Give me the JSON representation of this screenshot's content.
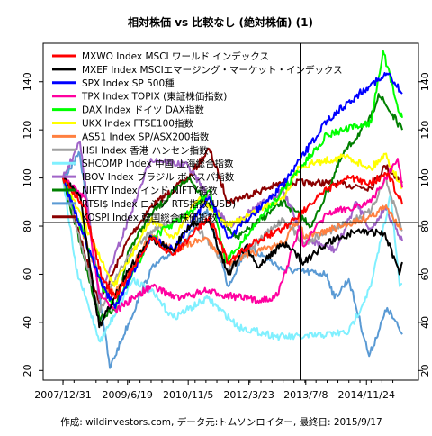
{
  "chart_data": {
    "type": "line",
    "title": "相対株価 vs 比較なし (絶対株価) (1)",
    "caption": "作成: wildinvestors.com, データ元:トムソンロイター, 最終日: 2015/9/17",
    "xlabel": "",
    "ylabel": "",
    "ylim": [
      16,
      156
    ],
    "xlim": [
      "2007-12-31",
      "2015-09-17"
    ],
    "y_ticks": [
      20,
      40,
      60,
      80,
      100,
      120,
      140
    ],
    "x_ticks": [
      {
        "date": "2007-12-31",
        "label": "2007/12/31"
      },
      {
        "date": "2009-06-19",
        "label": "2009/6/19"
      },
      {
        "date": "2010-11-05",
        "label": "2010/11/5"
      },
      {
        "date": "2012-03-23",
        "label": "2012/3/23"
      },
      {
        "date": "2013-07-08",
        "label": "2013/7/8"
      },
      {
        "date": "2014-11-24",
        "label": "2014/11/24"
      }
    ],
    "crosshair": {
      "date": "2013-05-22",
      "value": 81.5
    },
    "grid": false,
    "legend_position": "top-left",
    "series": [
      {
        "name": "MXWO Index MSCI ワールド インデックス",
        "color": "#ff0000",
        "x": [
          "2007-12-31",
          "2008-06-30",
          "2008-11-20",
          "2009-03-09",
          "2009-12-31",
          "2010-07-01",
          "2011-04-29",
          "2011-10-03",
          "2012-05-31",
          "2012-12-31",
          "2013-12-31",
          "2014-06-30",
          "2014-12-31",
          "2015-05-21",
          "2015-09-17"
        ],
        "values": [
          100,
          88,
          58,
          50,
          75,
          68,
          84,
          65,
          74,
          79,
          95,
          100,
          98,
          102,
          89
        ]
      },
      {
        "name": "MXEF Index MSCIエマージング・マーケット・インデックス",
        "color": "#000000",
        "x": [
          "2007-12-31",
          "2008-05-19",
          "2008-10-27",
          "2009-06-30",
          "2009-12-31",
          "2010-06-30",
          "2010-11-05",
          "2011-04-29",
          "2011-10-03",
          "2012-03-01",
          "2012-06-01",
          "2012-12-31",
          "2013-06-24",
          "2013-12-31",
          "2014-09-03",
          "2015-04-27",
          "2015-08-24",
          "2015-09-17"
        ],
        "values": [
          100,
          93,
          38,
          62,
          75,
          70,
          80,
          82,
          60,
          72,
          63,
          73,
          65,
          73,
          78,
          77,
          60,
          65
        ]
      },
      {
        "name": "SPX Index SP 500種",
        "color": "#0000ff",
        "x": [
          "2007-12-31",
          "2008-11-20",
          "2009-03-09",
          "2009-12-31",
          "2010-07-02",
          "2011-04-29",
          "2011-10-03",
          "2012-12-31",
          "2013-12-31",
          "2014-12-31",
          "2015-05-21",
          "2015-09-17"
        ],
        "values": [
          100,
          55,
          46,
          76,
          70,
          92,
          75,
          97,
          124,
          139,
          143,
          135
        ]
      },
      {
        "name": "TPX Index TOPIX (東証株価指数)",
        "color": "#ff00a0",
        "x": [
          "2007-12-31",
          "2008-06-30",
          "2008-10-27",
          "2009-03-12",
          "2009-12-31",
          "2010-08-31",
          "2011-03-15",
          "2012-06-04",
          "2012-11-14",
          "2013-05-22",
          "2013-06-13",
          "2013-12-31",
          "2014-12-31",
          "2015-08-10",
          "2015-09-17"
        ],
        "values": [
          100,
          92,
          52,
          45,
          55,
          50,
          53,
          49,
          51,
          80,
          72,
          85,
          90,
          108,
          96
        ]
      },
      {
        "name": "DAX Index ドイツ DAX指数",
        "color": "#00ff00",
        "x": [
          "2007-12-31",
          "2008-11-20",
          "2009-03-06",
          "2009-12-31",
          "2010-12-31",
          "2011-05-02",
          "2011-09-12",
          "2012-12-31",
          "2013-12-31",
          "2014-12-31",
          "2015-04-10",
          "2015-08-24",
          "2015-09-17"
        ],
        "values": [
          100,
          55,
          46,
          75,
          87,
          95,
          65,
          95,
          118,
          123,
          153,
          127,
          125
        ]
      },
      {
        "name": "UKX Index FTSE100指数",
        "color": "#ffff00",
        "x": [
          "2007-12-31",
          "2008-11-20",
          "2009-03-03",
          "2009-12-31",
          "2010-07-01",
          "2011-02-08",
          "2011-10-03",
          "2012-12-31",
          "2013-05-22",
          "2014-06-10",
          "2014-12-31",
          "2015-04-27",
          "2015-09-17"
        ],
        "values": [
          100,
          65,
          55,
          83,
          75,
          92,
          80,
          92,
          105,
          109,
          104,
          110,
          96
        ]
      },
      {
        "name": "AS51 Index SP/ASX200指数",
        "color": "#ff8040",
        "x": [
          "2007-12-31",
          "2008-11-20",
          "2009-03-06",
          "2009-12-31",
          "2010-07-01",
          "2011-04-01",
          "2011-10-03",
          "2012-12-31",
          "2013-05-14",
          "2013-06-24",
          "2014-12-31",
          "2015-04-27",
          "2015-09-17"
        ],
        "values": [
          100,
          55,
          52,
          76,
          70,
          75,
          65,
          73,
          83,
          75,
          84,
          88,
          79
        ]
      },
      {
        "name": "HSI Index 香港 ハンセン指数",
        "color": "#a0a0a0",
        "x": [
          "2007-12-31",
          "2008-10-27",
          "2009-06-30",
          "2009-12-31",
          "2010-11-05",
          "2011-10-03",
          "2012-12-31",
          "2013-06-24",
          "2014-12-31",
          "2015-04-27",
          "2015-09-17"
        ],
        "values": [
          100,
          45,
          68,
          78,
          85,
          62,
          83,
          73,
          86,
          100,
          78
        ]
      },
      {
        "name": "SHCOMP Index 中国 上海総合指数",
        "color": "#80f0ff",
        "x": [
          "2007-12-31",
          "2008-04-18",
          "2008-11-04",
          "2009-08-04",
          "2009-12-31",
          "2010-07-02",
          "2011-04-18",
          "2011-12-31",
          "2012-12-03",
          "2013-06-24",
          "2014-06-30",
          "2014-12-31",
          "2015-06-12",
          "2015-08-26",
          "2015-09-17"
        ],
        "values": [
          100,
          62,
          32,
          58,
          53,
          42,
          50,
          38,
          34,
          34,
          36,
          55,
          93,
          55,
          56
        ]
      },
      {
        "name": "IBOV Index ブラジル ボベスパ指数",
        "color": "#a064c8",
        "x": [
          "2007-12-31",
          "2008-05-20",
          "2008-10-27",
          "2009-12-31",
          "2010-11-05",
          "2011-10-03",
          "2012-12-31",
          "2013-06-24",
          "2014-03-14",
          "2014-09-02",
          "2014-12-31",
          "2015-04-27",
          "2015-09-17"
        ],
        "values": [
          100,
          115,
          50,
          108,
          105,
          80,
          95,
          75,
          70,
          90,
          78,
          88,
          74
        ]
      },
      {
        "name": "NIFTY Index インド NIFTY指数",
        "color": "#008000",
        "x": [
          "2007-12-31",
          "2008-10-27",
          "2009-03-06",
          "2009-06-30",
          "2009-12-31",
          "2010-11-05",
          "2011-12-20",
          "2012-12-31",
          "2013-08-28",
          "2014-05-16",
          "2014-12-31",
          "2015-03-04",
          "2015-09-17"
        ],
        "values": [
          100,
          42,
          45,
          70,
          85,
          100,
          75,
          90,
          80,
          110,
          125,
          135,
          120
        ]
      },
      {
        "name": "RTSI$ Index ロシア RTS指数(USD)",
        "color": "#5a9ad4",
        "x": [
          "2007-12-31",
          "2008-05-19",
          "2009-01-23",
          "2009-12-31",
          "2010-11-05",
          "2011-04-11",
          "2011-10-03",
          "2012-03-13",
          "2012-12-31",
          "2013-12-31",
          "2014-03-03",
          "2014-06-30",
          "2014-12-16",
          "2015-05-15",
          "2015-09-17"
        ],
        "values": [
          100,
          110,
          21,
          62,
          75,
          87,
          55,
          72,
          62,
          60,
          50,
          58,
          26,
          46,
          35
        ]
      },
      {
        "name": "KOSPI Index 韓国総合株価指数",
        "color": "#8b0000",
        "x": [
          "2007-12-31",
          "2008-10-27",
          "2009-06-30",
          "2009-12-31",
          "2010-11-05",
          "2011-04-29",
          "2011-10-03",
          "2012-12-31",
          "2013-12-31",
          "2014-12-31",
          "2015-04-27",
          "2015-09-17"
        ],
        "values": [
          100,
          48,
          75,
          88,
          100,
          112,
          90,
          98,
          98,
          96,
          105,
          98
        ]
      }
    ]
  }
}
